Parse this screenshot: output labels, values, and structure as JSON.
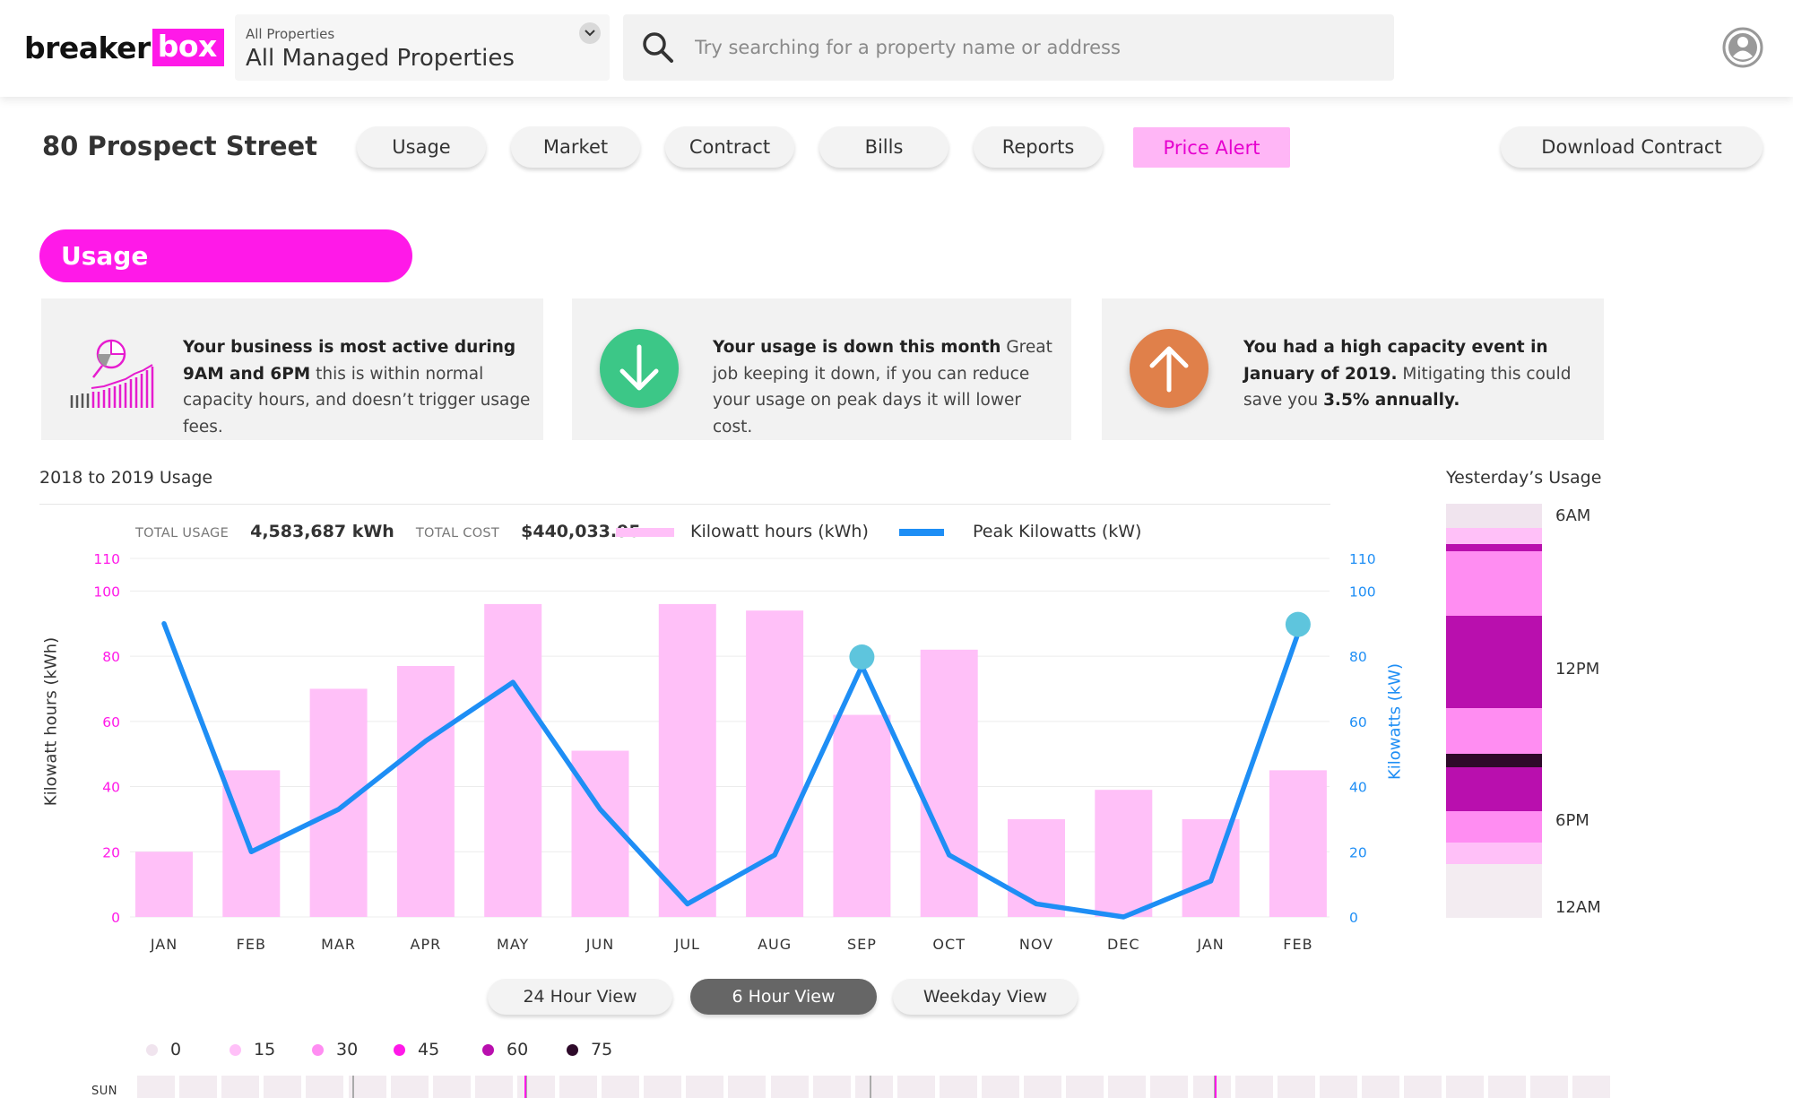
{
  "header": {
    "logo_part1": "breaker",
    "logo_part2": "box",
    "property_select_small": "All Properties",
    "property_select_value": "All Managed Properties",
    "search_placeholder": "Try searching for a property name or address"
  },
  "nav": {
    "property_title": "80 Prospect Street",
    "tabs": [
      "Usage",
      "Market",
      "Contract",
      "Bills",
      "Reports",
      "Price Alert"
    ],
    "download_label": "Download Contract"
  },
  "section": {
    "title": "Usage"
  },
  "cards": [
    {
      "bold": "Your business is most active during 9AM and 6PM",
      "rest": " this is within normal capacity hours, and doesn’t trigger usage fees."
    },
    {
      "bold": "Your usage is down this month",
      "rest": " Great job keeping it down, if you can reduce your usage on peak days it will lower cost."
    },
    {
      "bold1": "You had a high capacity event in January of 2019.",
      "mid": " Mitigating this could save you ",
      "bold2": "3.5% annually."
    }
  ],
  "colors": {
    "magenta": "#ff19e8",
    "bar_pink": "#ffc0f8",
    "line_blue": "#1e8ef5",
    "peak_dot": "#5ec5dd",
    "green": "#3cc787",
    "orange": "#e0804a"
  },
  "usage_chart": {
    "title": "2018 to 2019 Usage",
    "total_usage_label": "TOTAL USAGE",
    "total_usage_value": "4,583,687 kWh",
    "total_cost_label": "TOTAL COST",
    "total_cost_value": "$440,033.95",
    "legend_kwh": "Kilowatt hours (kWh)",
    "legend_kw": "Peak Kilowatts (kW)"
  },
  "chart_data": {
    "type": "bar",
    "categories": [
      "JAN",
      "FEB",
      "MAR",
      "APR",
      "MAY",
      "JUN",
      "JUL",
      "AUG",
      "SEP",
      "OCT",
      "NOV",
      "DEC",
      "JAN",
      "FEB"
    ],
    "series": [
      {
        "name": "Kilowatt hours (kWh)",
        "type": "bar",
        "axis": "left",
        "values": [
          20,
          45,
          70,
          77,
          96,
          51,
          96,
          94,
          62,
          82,
          30,
          39,
          30,
          45
        ]
      },
      {
        "name": "Peak Kilowatts (kW)",
        "type": "line",
        "axis": "right",
        "values": [
          90,
          20,
          33,
          54,
          72,
          33,
          4,
          19,
          77,
          19,
          4,
          0,
          11,
          87
        ],
        "highlighted_points": [
          8,
          13
        ]
      }
    ],
    "ylabel": "Kilowatt hours (kWh)",
    "y2label": "Kilowatts (kW)",
    "ylim": [
      0,
      110
    ],
    "y2lim": [
      0,
      110
    ],
    "yticks": [
      0,
      20,
      40,
      60,
      80,
      100,
      110
    ],
    "grid": true
  },
  "views": [
    "24 Hour View",
    "6 Hour View",
    "Weekday View"
  ],
  "active_view": "6 Hour View",
  "scale": [
    {
      "label": "0",
      "color": "#f0e4ee"
    },
    {
      "label": "15",
      "color": "#ffc0f8"
    },
    {
      "label": "30",
      "color": "#ff8df2"
    },
    {
      "label": "45",
      "color": "#ff19e8"
    },
    {
      "label": "60",
      "color": "#b90fae"
    },
    {
      "label": "75",
      "color": "#2e0a2a"
    }
  ],
  "yesterday": {
    "title": "Yesterday’s Usage",
    "labels": [
      "6AM",
      "12PM",
      "6PM",
      "12AM"
    ],
    "segment_levels": [
      "0",
      "15",
      "60",
      "30",
      "60",
      "30",
      "75",
      "60",
      "30",
      "15",
      "0"
    ]
  },
  "heatmap": {
    "row_label": "SUN"
  }
}
